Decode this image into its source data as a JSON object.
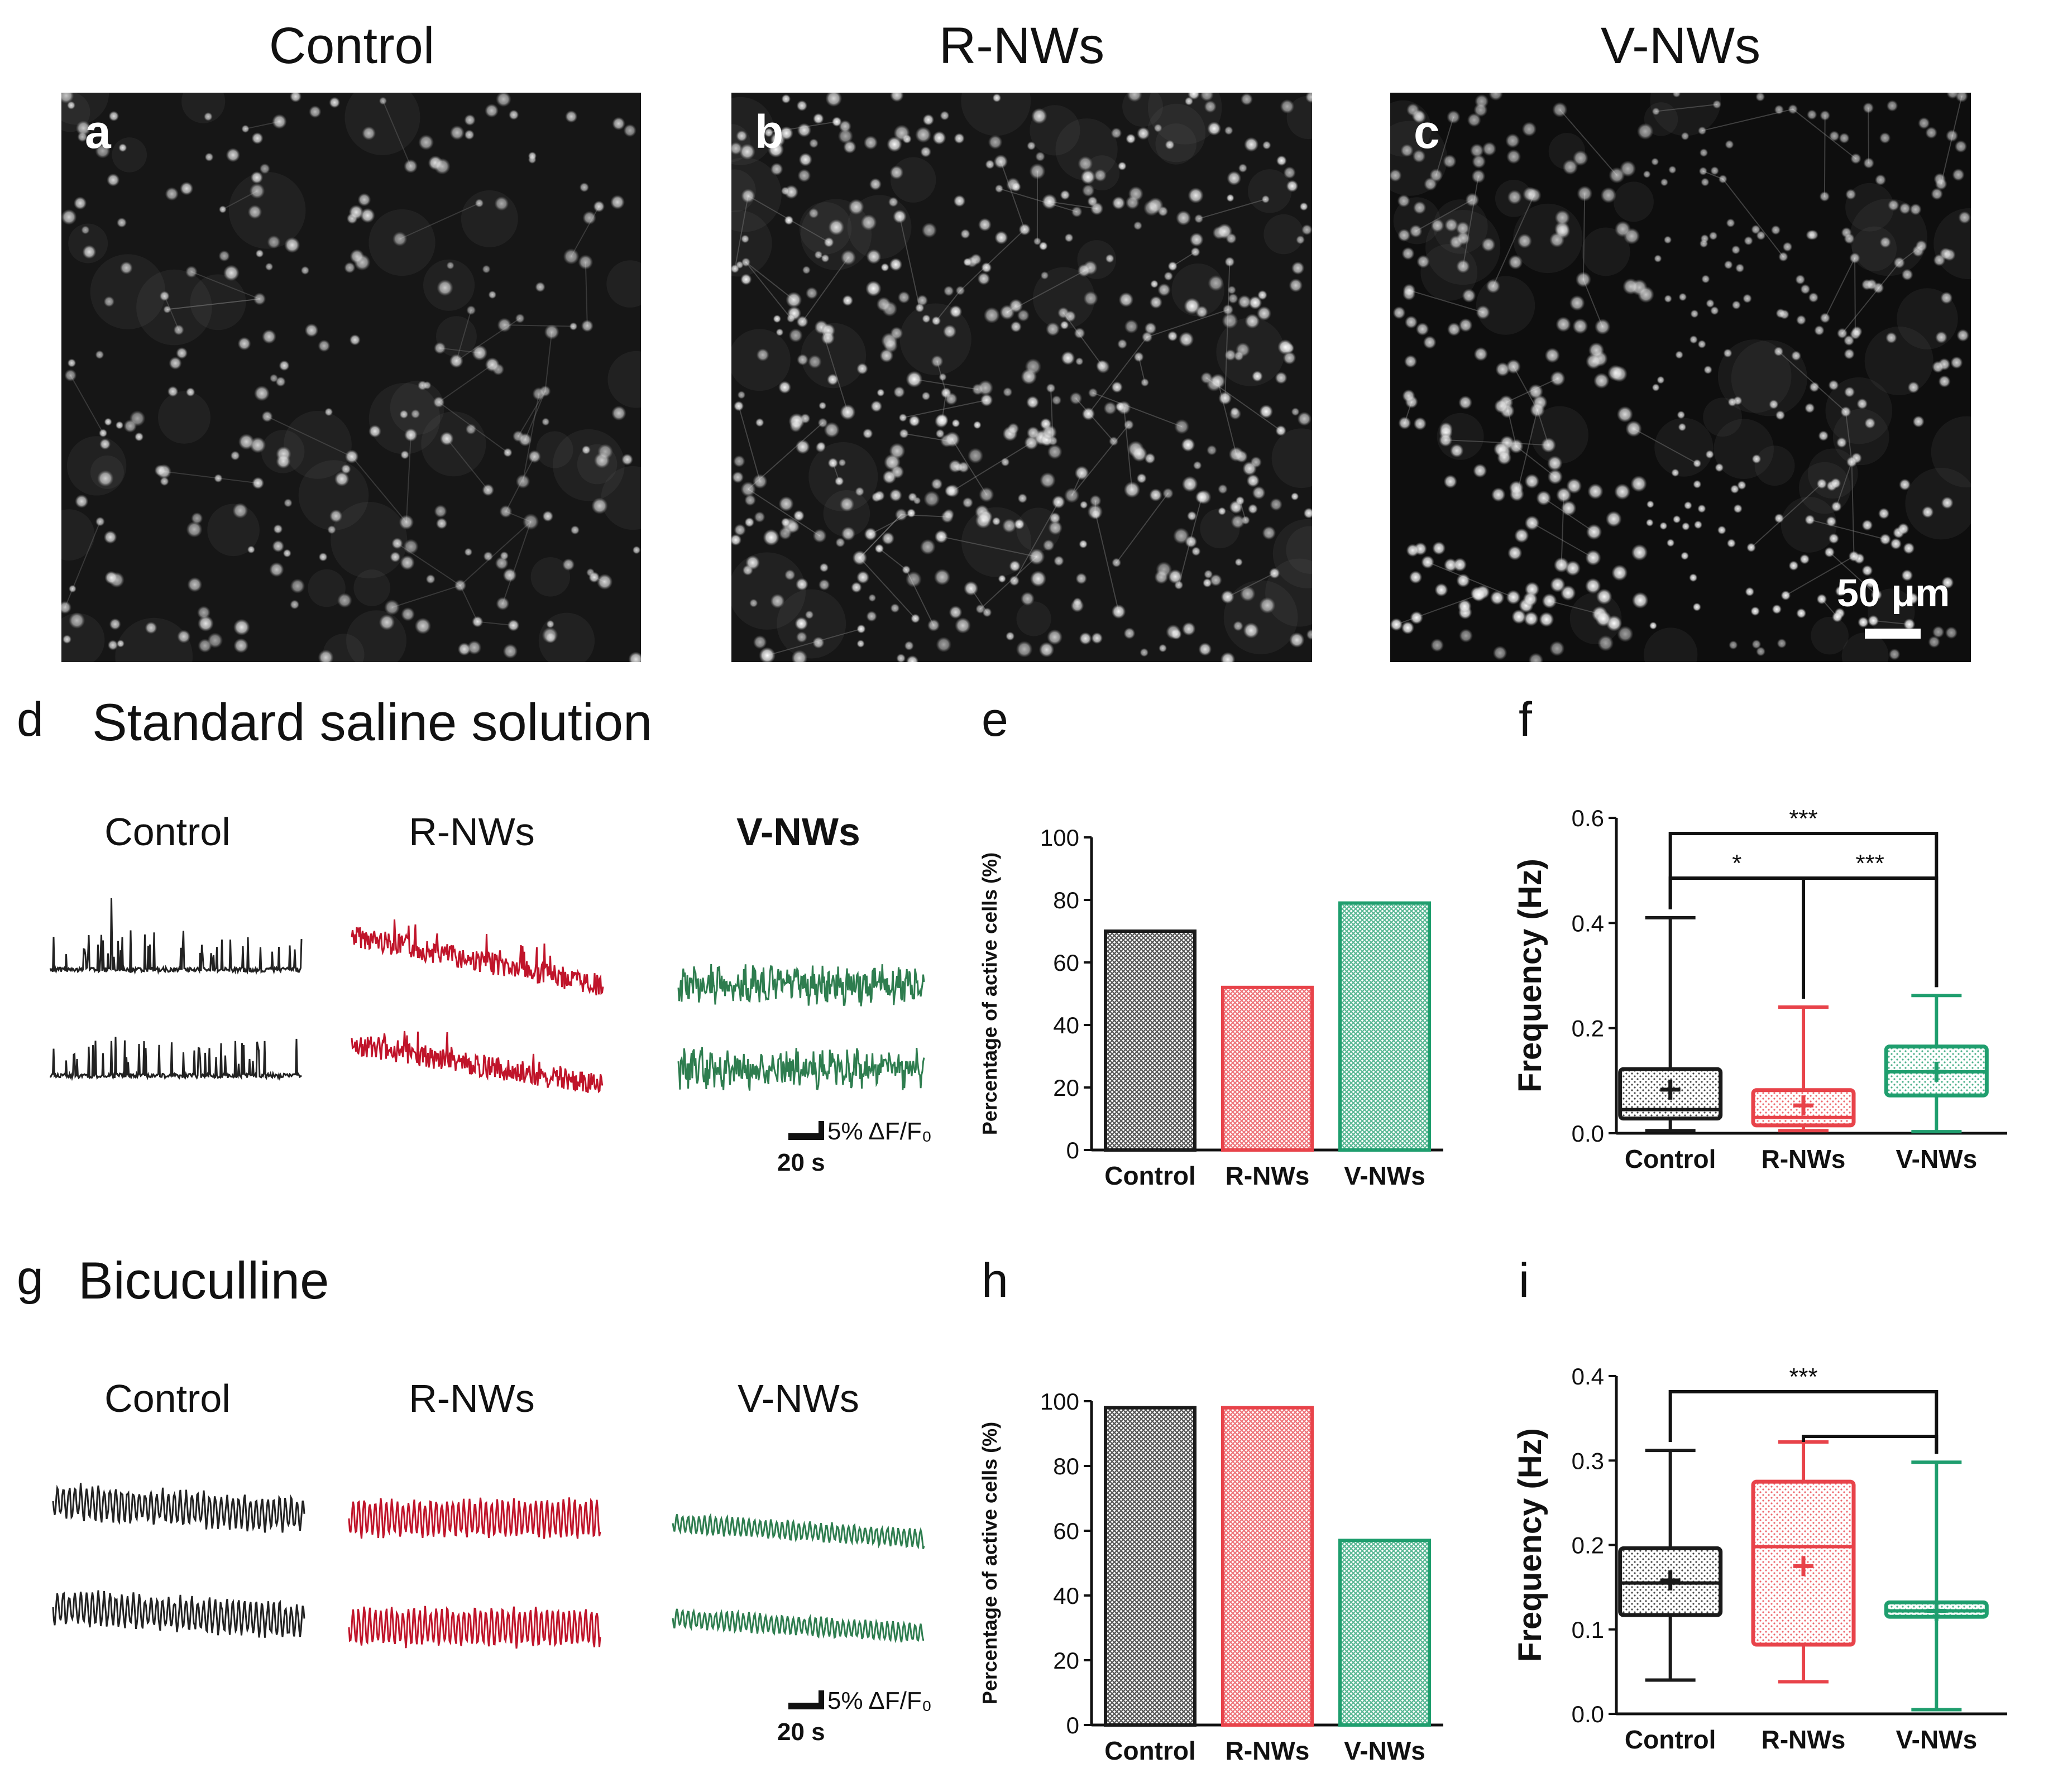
{
  "top": {
    "columns": [
      {
        "title": "Control",
        "letter": "a"
      },
      {
        "title": "R-NWs",
        "letter": "b"
      },
      {
        "title": "V-NWs",
        "letter": "c"
      }
    ],
    "scale_bar": "50 μm"
  },
  "colors": {
    "control": "#1a1a1a",
    "rnws": "#e8434a",
    "vnws": "#1f9e6e",
    "trace_control": "#222222",
    "trace_rnws": "#c0142a",
    "trace_vnws": "#2e7d4f"
  },
  "row_d": {
    "letter": "d",
    "title": "Standard saline solution",
    "trace_labels": [
      "Control",
      "R-NWs",
      "V-NWs"
    ],
    "scale": {
      "dff": "5% ΔF/F₀",
      "time": "20 s"
    }
  },
  "row_g": {
    "letter": "g",
    "title": "Bicuculline",
    "trace_labels": [
      "Control",
      "R-NWs",
      "V-NWs"
    ],
    "scale": {
      "dff": "5% ΔF/F₀",
      "time": "20 s"
    }
  },
  "chart_data": [
    {
      "id": "e",
      "letter": "e",
      "type": "bar",
      "categories": [
        "Control",
        "R-NWs",
        "V-NWs"
      ],
      "values": [
        70,
        52,
        79
      ],
      "ylabel": "Percentage of active cells (%)",
      "ylim": [
        0,
        100
      ],
      "yticks": [
        "0",
        "20",
        "40",
        "60",
        "80",
        "100"
      ]
    },
    {
      "id": "f",
      "letter": "f",
      "type": "box",
      "categories": [
        "Control",
        "R-NWs",
        "V-NWs"
      ],
      "ylabel": "Frequency  (Hz)",
      "ylim": [
        0,
        0.6
      ],
      "yticks": [
        "0.0",
        "0.2",
        "0.4",
        "0.6"
      ],
      "boxes": [
        {
          "min": 0.005,
          "q1": 0.028,
          "median": 0.045,
          "q3": 0.122,
          "max": 0.41,
          "mean": 0.083
        },
        {
          "min": 0.005,
          "q1": 0.015,
          "median": 0.03,
          "q3": 0.082,
          "max": 0.24,
          "mean": 0.053
        },
        {
          "min": 0.003,
          "q1": 0.072,
          "median": 0.117,
          "q3": 0.165,
          "max": 0.262,
          "mean": 0.117
        }
      ],
      "significance": [
        {
          "from": 0,
          "to": 2,
          "label": "***"
        },
        {
          "from": 0,
          "to": 1,
          "label": "*"
        },
        {
          "from": 1,
          "to": 2,
          "label": "***"
        }
      ]
    },
    {
      "id": "h",
      "letter": "h",
      "type": "bar",
      "categories": [
        "Control",
        "R-NWs",
        "V-NWs"
      ],
      "values": [
        98,
        98,
        57
      ],
      "ylabel": "Percentage of active cells (%)",
      "ylim": [
        0,
        100
      ],
      "yticks": [
        "0",
        "20",
        "40",
        "60",
        "80",
        "100"
      ]
    },
    {
      "id": "i",
      "letter": "i",
      "type": "box",
      "categories": [
        "Control",
        "R-NWs",
        "V-NWs"
      ],
      "ylabel": "Frequency  (Hz)",
      "ylim": [
        0,
        0.4
      ],
      "yticks": [
        "0.0",
        "0.1",
        "0.2",
        "0.3",
        "0.4"
      ],
      "boxes": [
        {
          "min": 0.04,
          "q1": 0.117,
          "median": 0.155,
          "q3": 0.196,
          "max": 0.312,
          "mean": 0.158
        },
        {
          "min": 0.038,
          "q1": 0.082,
          "median": 0.198,
          "q3": 0.275,
          "max": 0.322,
          "mean": 0.175
        },
        {
          "min": 0.005,
          "q1": 0.115,
          "median": 0.122,
          "q3": 0.132,
          "max": 0.298,
          "mean": 0.122
        }
      ],
      "significance": [
        {
          "from": 0,
          "to": 2,
          "label": "***"
        },
        {
          "from": 1,
          "to": 2,
          "label": ""
        }
      ]
    }
  ]
}
